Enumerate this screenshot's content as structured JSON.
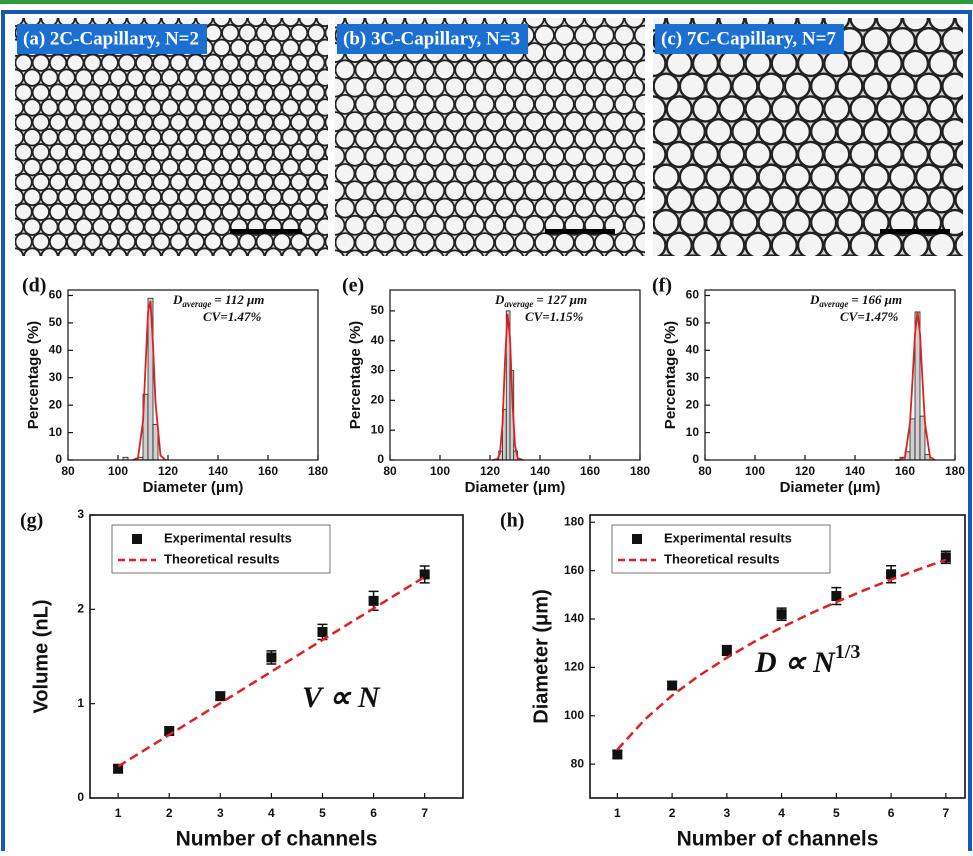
{
  "panels": [
    {
      "label": "(a) 2C-Capillary, N=2"
    },
    {
      "label": "(b) 3C-Capillary, N=3"
    },
    {
      "label": "(c) 7C-Capillary, N=7"
    }
  ],
  "chart_data": [
    {
      "type": "histogram",
      "panel_label": "(d)",
      "xlabel": "Diameter (μm)",
      "ylabel": "Percentage (%)",
      "xlim": [
        80,
        180
      ],
      "xticks": [
        80,
        100,
        120,
        140,
        160,
        180
      ],
      "ylim": [
        0,
        62
      ],
      "yticks": [
        0,
        10,
        20,
        30,
        40,
        50,
        60
      ],
      "bins": [
        102,
        104,
        106,
        108,
        110,
        112,
        114,
        116
      ],
      "values": [
        1,
        0,
        0,
        1,
        24,
        59,
        13
      ],
      "color": "#cfcfcf",
      "fit": {
        "color": "#e02020",
        "x": [
          106,
          108,
          110,
          111,
          112,
          113,
          114,
          115,
          117,
          119
        ],
        "values": [
          0,
          0.8,
          14,
          34,
          54,
          58,
          42,
          21,
          1.6,
          0
        ]
      },
      "annotation": {
        "symbol": "D",
        "subscript": "average",
        "text": "= 112 μm",
        "cv": "CV=1.47%"
      }
    },
    {
      "type": "histogram",
      "panel_label": "(e)",
      "xlabel": "Diameter (μm)",
      "ylabel": "Percentage (%)",
      "xlim": [
        80,
        180
      ],
      "xticks": [
        80,
        100,
        120,
        140,
        160,
        180
      ],
      "ylim": [
        0,
        57
      ],
      "yticks": [
        0,
        10,
        20,
        30,
        40,
        50
      ],
      "bins": [
        123.5,
        125,
        126.5,
        128,
        129.5,
        131
      ],
      "values": [
        3,
        17,
        50,
        30,
        3
      ],
      "color": "#cfcfcf",
      "fit": {
        "color": "#e02020",
        "x": [
          121,
          123,
          124,
          125,
          126,
          127,
          128,
          129,
          130,
          131,
          133
        ],
        "values": [
          0,
          0.3,
          2.4,
          12,
          33,
          49,
          41,
          19,
          5,
          0.7,
          0
        ]
      },
      "annotation": {
        "symbol": "D",
        "subscript": "average",
        "text": "= 127 μm",
        "cv": "CV=1.15%"
      }
    },
    {
      "type": "histogram",
      "panel_label": "(f)",
      "xlabel": "Diameter (μm)",
      "ylabel": "Percentage (%)",
      "xlim": [
        80,
        180
      ],
      "xticks": [
        80,
        100,
        120,
        140,
        160,
        180
      ],
      "ylim": [
        0,
        62
      ],
      "yticks": [
        0,
        10,
        20,
        30,
        40,
        50,
        60
      ],
      "bins": [
        158,
        160,
        162,
        164,
        166,
        168,
        170
      ],
      "values": [
        1,
        3,
        15,
        54,
        16,
        2
      ],
      "color": "#cfcfcf",
      "fit": {
        "color": "#e02020",
        "x": [
          156,
          158,
          160,
          162,
          163,
          164,
          165,
          166,
          167,
          168,
          170,
          172
        ],
        "values": [
          0,
          0,
          1.1,
          13.5,
          29,
          46,
          54,
          46,
          29,
          13.5,
          1.1,
          0
        ]
      },
      "annotation": {
        "symbol": "D",
        "subscript": "average",
        "text": "= 166 μm",
        "cv": "CV=1.47%"
      }
    },
    {
      "type": "scatter",
      "panel_label": "(g)",
      "xlabel": "Number of channels",
      "ylabel": "Volume (nL)",
      "xlim": [
        0.45,
        7.75
      ],
      "xticks": [
        1,
        2,
        3,
        4,
        5,
        6,
        7
      ],
      "ylim": [
        0,
        3
      ],
      "yticks": [
        0,
        1,
        2,
        3
      ],
      "series": [
        {
          "name": "Experimental results",
          "style": "markers",
          "color": "#111111",
          "x": [
            1,
            2,
            3,
            4,
            5,
            6,
            7
          ],
          "values": [
            0.31,
            0.71,
            1.08,
            1.49,
            1.76,
            2.09,
            2.37
          ],
          "errors": [
            0.04,
            0.04,
            0.04,
            0.07,
            0.08,
            0.1,
            0.09
          ]
        },
        {
          "name": "Theoretical results",
          "style": "dashed",
          "color": "#e02020",
          "x": [
            1,
            2,
            3,
            4,
            5,
            6,
            7
          ],
          "values": [
            0.335,
            0.67,
            1.005,
            1.34,
            1.675,
            2.01,
            2.345
          ]
        }
      ],
      "annotation": {
        "text": "V ∝ N"
      }
    },
    {
      "type": "scatter",
      "panel_label": "(h)",
      "xlabel": "Number of channels",
      "ylabel": "Diameter (μm)",
      "xlim": [
        0.5,
        7.35
      ],
      "xticks": [
        1,
        2,
        3,
        4,
        5,
        6,
        7
      ],
      "ylim": [
        66,
        183
      ],
      "yticks": [
        80,
        100,
        120,
        140,
        160,
        180
      ],
      "series": [
        {
          "name": "Experimental results",
          "style": "markers",
          "color": "#111111",
          "x": [
            1,
            2,
            3,
            4,
            5,
            6,
            7
          ],
          "values": [
            84,
            112.5,
            127,
            142,
            149.5,
            158.5,
            165.5
          ],
          "errors": [
            1.5,
            1.5,
            2,
            2.5,
            3.5,
            3.5,
            2.5
          ]
        },
        {
          "name": "Theoretical results",
          "style": "dashed",
          "color": "#e02020",
          "x": [
            1,
            1.5,
            2,
            2.5,
            3,
            3.5,
            4,
            4.5,
            5,
            5.5,
            6,
            6.5,
            7
          ],
          "values": [
            86,
            98.4,
            108.4,
            116.7,
            124,
            130.6,
            136.5,
            142,
            147,
            151.8,
            156.3,
            160.5,
            164.5
          ]
        }
      ],
      "annotation": {
        "text": "D ∝ N",
        "superscript": "1/3"
      }
    }
  ]
}
